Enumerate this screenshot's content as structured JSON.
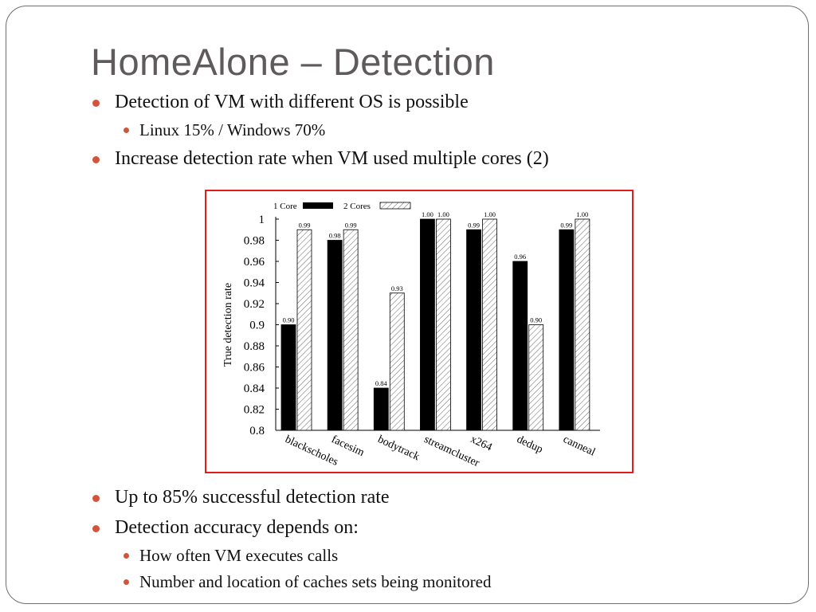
{
  "slide": {
    "title": "HomeAlone – Detection",
    "bullets_top": [
      {
        "level": 1,
        "text": "Detection of VM with different OS is possible"
      },
      {
        "level": 2,
        "text": "Linux 15%   /  Windows 70%"
      },
      {
        "level": 1,
        "text": "Increase detection rate when VM used multiple cores (2)"
      }
    ],
    "bullets_bottom": [
      {
        "level": 1,
        "text": "Up to 85% successful detection rate"
      },
      {
        "level": 1,
        "text": "Detection accuracy depends on:"
      },
      {
        "level": 2,
        "text": "How often VM executes calls"
      },
      {
        "level": 2,
        "text": "Number and location of caches sets being monitored"
      }
    ]
  },
  "colors": {
    "bullet": "#d2553a",
    "title": "#5f5a5b",
    "chart_border": "#e31b1b"
  },
  "chart_data": {
    "type": "bar",
    "title": "",
    "xlabel": "",
    "ylabel": "True detection rate",
    "ylim": [
      0.8,
      1.0
    ],
    "yticks": [
      "0.8",
      "0.82",
      "0.84",
      "0.86",
      "0.88",
      "0.9",
      "0.92",
      "0.94",
      "0.96",
      "0.98",
      "1"
    ],
    "categories": [
      "blackscholes",
      "facesim",
      "bodytrack",
      "streamcluster",
      "x264",
      "dedup",
      "canneal"
    ],
    "series": [
      {
        "name": "1 Core",
        "style": "solid",
        "values": [
          0.9,
          0.98,
          0.84,
          1.0,
          0.99,
          0.96,
          0.99
        ],
        "labels": [
          "0.90",
          "0.98",
          "0.84",
          "1.00",
          "0.99",
          "0.96",
          "0.99"
        ]
      },
      {
        "name": "2 Cores",
        "style": "hatched",
        "values": [
          0.99,
          0.99,
          0.93,
          1.0,
          1.0,
          0.9,
          1.0
        ],
        "labels": [
          "0.99",
          "0.99",
          "0.93",
          "1.00",
          "1.00",
          "0.90",
          "1.00"
        ]
      }
    ],
    "legend": "top-left"
  }
}
